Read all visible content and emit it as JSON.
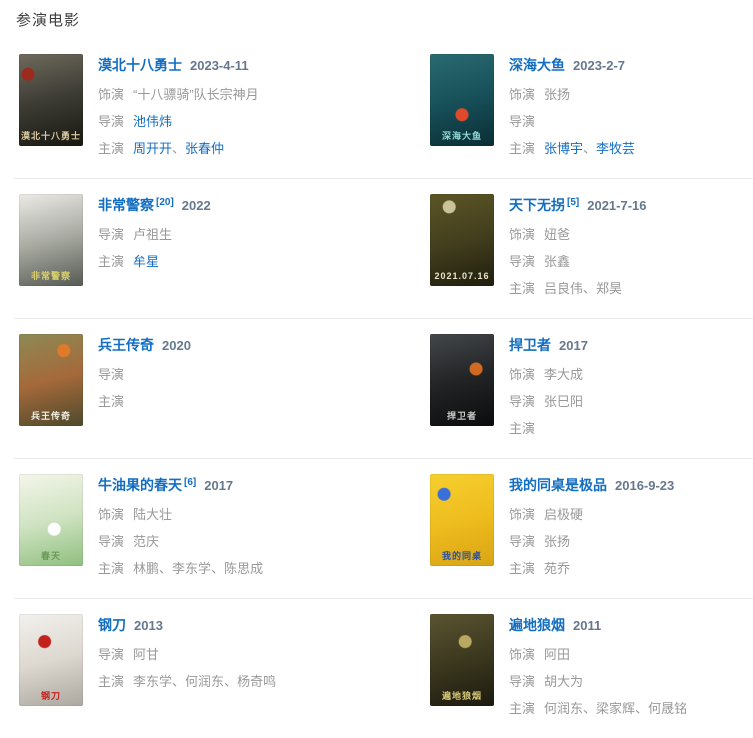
{
  "header": {
    "title": "参演电影"
  },
  "colors": {
    "link_blue": "#136ec2",
    "date_gray_blue": "#66788e",
    "label_gray": "#999999",
    "plain_text_gray": "#999999",
    "divider": "#ececec",
    "header_text": "#3d3d3d"
  },
  "movies": [
    {
      "title": "漠北十八勇士",
      "ref": "",
      "date": "2023-4-11",
      "credits": [
        {
          "label": "饰演",
          "names": [
            "“十八骠骑”队长宗神月"
          ],
          "link": false
        },
        {
          "label": "导演",
          "names": [
            "池伟炜"
          ],
          "link": true
        },
        {
          "label": "主演",
          "names": [
            "周开开",
            "张春仲"
          ],
          "link": true
        }
      ],
      "poster": {
        "desc": "dark battlefield with riders and red banner",
        "colors": [
          "#6f6a5c",
          "#3c3b34",
          "#17180f"
        ],
        "accent": "#9c2a1e",
        "accent_pos": "14% 22%",
        "caption": "漠北十八勇士",
        "caption_color": "#d8c9a0"
      }
    },
    {
      "title": "深海大鱼",
      "ref": "",
      "date": "2023-2-7",
      "credits": [
        {
          "label": "饰演",
          "names": [
            "张扬"
          ],
          "link": false
        },
        {
          "label": "导演",
          "names": [],
          "link": false
        },
        {
          "label": "主演",
          "names": [
            "张博宇",
            "李牧芸"
          ],
          "link": true
        }
      ],
      "poster": {
        "desc": "teal underwater scene with red lantern figure",
        "colors": [
          "#2a6a70",
          "#175059",
          "#0b2d35"
        ],
        "accent": "#e04a2a",
        "accent_pos": "50% 66%",
        "caption": "深海大鱼",
        "caption_color": "#8fd8d2"
      }
    },
    {
      "title": "非常警察",
      "ref": "20",
      "date": "2022",
      "credits": [
        {
          "label": "导演",
          "names": [
            "卢祖生"
          ],
          "link": false
        },
        {
          "label": "主演",
          "names": [
            "牟星"
          ],
          "link": true
        }
      ],
      "poster": {
        "desc": "grayscale photo of two people in a car",
        "colors": [
          "#eceae6",
          "#a9aba3",
          "#565a52"
        ],
        "accent": "",
        "accent_pos": "",
        "caption": "非常警察",
        "caption_color": "#d8cf6a"
      }
    },
    {
      "title": "天下无拐",
      "ref": "5",
      "date": "2021-7-16",
      "credits": [
        {
          "label": "饰演",
          "names": [
            "妞爸"
          ],
          "link": false
        },
        {
          "label": "导演",
          "names": [
            "张鑫"
          ],
          "link": false
        },
        {
          "label": "主演",
          "names": [
            "吕良伟",
            "郑昊"
          ],
          "link": false
        }
      ],
      "poster": {
        "desc": "dark olive poster with two faces and white brush title",
        "colors": [
          "#5c5526",
          "#433f1e",
          "#201e0e"
        ],
        "accent": "#c9c39a",
        "accent_pos": "30% 14%",
        "caption": "2021.07.16",
        "caption_color": "#e8e4c8"
      }
    },
    {
      "title": "兵王传奇",
      "ref": "",
      "date": "2020",
      "credits": [
        {
          "label": "导演",
          "names": [],
          "link": false
        },
        {
          "label": "主演",
          "names": [],
          "link": false
        }
      ],
      "poster": {
        "desc": "action poster with soldiers and orange explosion",
        "colors": [
          "#8d8a55",
          "#a5693a",
          "#4c4a2c"
        ],
        "accent": "#e07a28",
        "accent_pos": "70% 18%",
        "caption": "兵王传奇",
        "caption_color": "#f2efe6"
      }
    },
    {
      "title": "捍卫者",
      "ref": "",
      "date": "2017",
      "credits": [
        {
          "label": "饰演",
          "names": [
            "李大成"
          ],
          "link": false
        },
        {
          "label": "导演",
          "names": [
            "张巳阳"
          ],
          "link": false
        },
        {
          "label": "主演",
          "names": [],
          "link": false
        }
      ],
      "poster": {
        "desc": "near-black poster with helmet and orange spark",
        "colors": [
          "#44474a",
          "#212325",
          "#0b0c0d"
        ],
        "accent": "#d06a20",
        "accent_pos": "72% 38%",
        "caption": "捍卫者",
        "caption_color": "#c9c9c7"
      }
    },
    {
      "title": "牛油果的春天",
      "ref": "6",
      "date": "2017",
      "credits": [
        {
          "label": "饰演",
          "names": [
            "陆大壮"
          ],
          "link": false
        },
        {
          "label": "导演",
          "names": [
            "范庆"
          ],
          "link": false
        },
        {
          "label": "主演",
          "names": [
            "林鹏",
            "李东学",
            "陈思成"
          ],
          "link": false
        }
      ],
      "poster": {
        "desc": "light watercolor of green trees and lawn with two figures",
        "colors": [
          "#f4f6ea",
          "#cfe3c2",
          "#8fbf7e"
        ],
        "accent": "#ffffff",
        "accent_pos": "55% 60%",
        "caption": "春天",
        "caption_color": "#6a9a5a"
      }
    },
    {
      "title": "我的同桌是极品",
      "ref": "",
      "date": "2016-9-23",
      "credits": [
        {
          "label": "饰演",
          "names": [
            "启极硬"
          ],
          "link": false
        },
        {
          "label": "导演",
          "names": [
            "张扬"
          ],
          "link": false
        },
        {
          "label": "主演",
          "names": [
            "苑乔"
          ],
          "link": false
        }
      ],
      "poster": {
        "desc": "bright yellow comedy poster with students",
        "colors": [
          "#f6cf2f",
          "#eebd1e",
          "#d9a414"
        ],
        "accent": "#3a6fd8",
        "accent_pos": "22% 22%",
        "caption": "我的同桌",
        "caption_color": "#2b4fa0"
      }
    },
    {
      "title": "钢刀",
      "ref": "",
      "date": "2013",
      "credits": [
        {
          "label": "导演",
          "names": [
            "阿甘"
          ],
          "link": false
        },
        {
          "label": "主演",
          "names": [
            "李东学",
            "何润东",
            "杨奇鸣"
          ],
          "link": false
        }
      ],
      "poster": {
        "desc": "pale poster with large red calligraphy strokes",
        "colors": [
          "#f3f1ee",
          "#ddd8d0",
          "#aba8a0"
        ],
        "accent": "#c3221c",
        "accent_pos": "40% 30%",
        "caption": "钢刀",
        "caption_color": "#c3221c"
      }
    },
    {
      "title": "遍地狼烟",
      "ref": "",
      "date": "2011",
      "credits": [
        {
          "label": "饰演",
          "names": [
            "阿田"
          ],
          "link": false
        },
        {
          "label": "导演",
          "names": [
            "胡大为"
          ],
          "link": false
        },
        {
          "label": "主演",
          "names": [
            "何润东",
            "梁家辉",
            "何晟铭"
          ],
          "link": false
        }
      ],
      "poster": {
        "desc": "dark sepia collage with diagonal strips and sniper",
        "colors": [
          "#5a5430",
          "#3c381f",
          "#1c1a0e"
        ],
        "accent": "#b8a860",
        "accent_pos": "55% 30%",
        "caption": "遍地狼烟",
        "caption_color": "#d8c878"
      }
    }
  ],
  "labels": {
    "name_separator": "、"
  }
}
